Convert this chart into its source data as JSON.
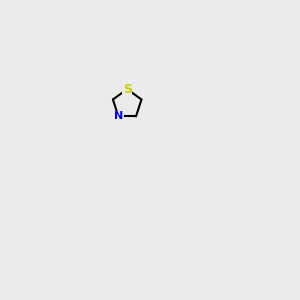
{
  "bg_color": "#ebebeb",
  "atom_colors": {
    "S": "#cccc00",
    "N": "#0000ff",
    "O": "#ff0000",
    "C": "#000000",
    "H": "#008080"
  },
  "bond_color": "#000000",
  "bond_width": 1.5,
  "font_size_atom": 8,
  "fig_width": 3.0,
  "fig_height": 3.0,
  "dpi": 100
}
